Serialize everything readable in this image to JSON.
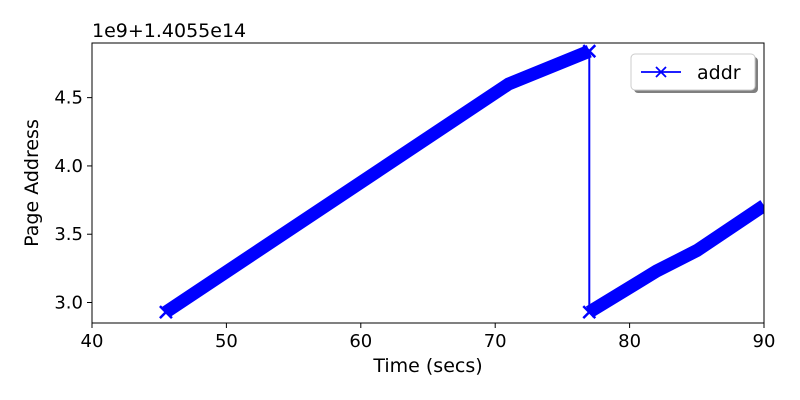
{
  "chart_data": {
    "type": "line",
    "xlabel": "Time (secs)",
    "ylabel": "Page Address",
    "xlim": [
      40,
      90
    ],
    "ylim": [
      2.85,
      4.9
    ],
    "x_ticks": [
      40,
      50,
      60,
      70,
      80,
      90
    ],
    "x_tick_labels": [
      "40",
      "50",
      "60",
      "70",
      "80",
      "90"
    ],
    "y_ticks": [
      3.0,
      3.5,
      4.0,
      4.5
    ],
    "y_tick_labels": [
      "3.0",
      "3.5",
      "4.0",
      "4.5"
    ],
    "y_offset_text": "1e9+1.4055e14",
    "grid": false,
    "legend_position": "top-right",
    "series": [
      {
        "name": "addr",
        "color": "#0000ff",
        "marker": "x",
        "segments": [
          {
            "x": [
              45.5,
              71.0,
              77.0
            ],
            "y": [
              2.93,
              4.6,
              4.84
            ]
          },
          {
            "x": [
              77.0,
              77.0
            ],
            "y": [
              4.84,
              2.93
            ]
          },
          {
            "x": [
              77.0,
              82.0,
              85.0,
              90.0
            ],
            "y": [
              2.93,
              3.23,
              3.38,
              3.71
            ]
          }
        ]
      }
    ]
  }
}
